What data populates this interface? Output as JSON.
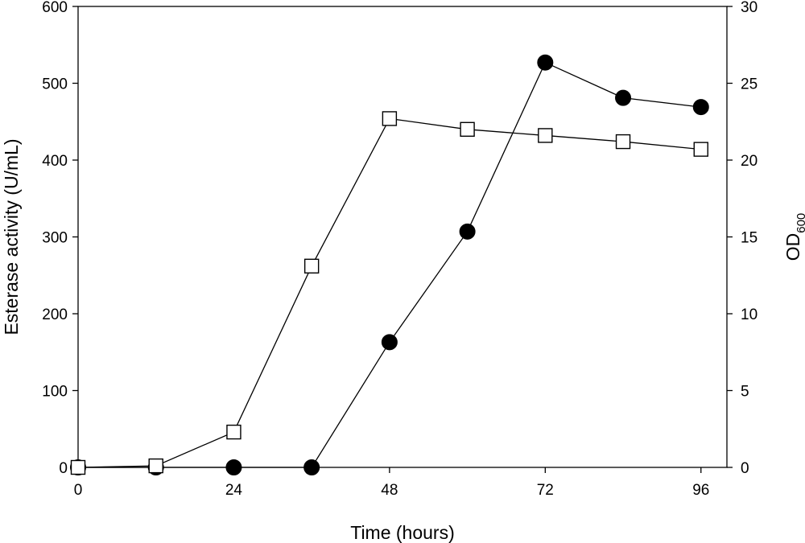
{
  "chart_data": {
    "type": "line",
    "title": "",
    "xlabel": "Time (hours)",
    "ylabel_left": "Esterase activity (U/mL)",
    "ylabel_right": "OD",
    "ylabel_right_subscript": "600",
    "xlim": [
      0,
      100
    ],
    "x_ticks": [
      0,
      24,
      48,
      72,
      96
    ],
    "ylim_left": [
      0,
      600
    ],
    "y_ticks_left": [
      0,
      100,
      200,
      300,
      400,
      500,
      600
    ],
    "ylim_right": [
      0,
      30
    ],
    "y_ticks_right": [
      0,
      5,
      10,
      15,
      20,
      25,
      30
    ],
    "grid": false,
    "legend": "none",
    "series": [
      {
        "axis": "left",
        "marker": "filled-circle",
        "color": "#000000",
        "x": [
          0,
          12,
          24,
          36,
          48,
          60,
          72,
          84,
          96
        ],
        "y": [
          0,
          0,
          0,
          0,
          163,
          307,
          527,
          481,
          469
        ]
      },
      {
        "axis": "right",
        "marker": "open-square",
        "color": "#000000",
        "x": [
          0,
          12,
          24,
          36,
          48,
          60,
          72,
          84,
          96
        ],
        "y": [
          0,
          0.1,
          2.3,
          13.1,
          22.7,
          22.0,
          21.6,
          21.2,
          20.7
        ]
      }
    ]
  }
}
